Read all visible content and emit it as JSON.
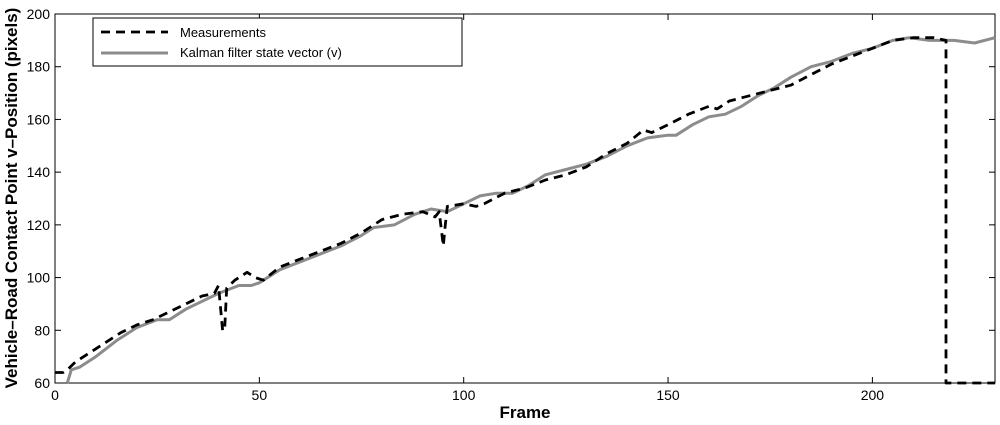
{
  "chart_data": {
    "type": "line",
    "title": "",
    "xlabel": "Frame",
    "ylabel": "Vehicle–Road Contact Point v–Position (pixels)",
    "xlim": [
      0,
      230
    ],
    "ylim": [
      60,
      200
    ],
    "xticks": [
      0,
      50,
      100,
      150,
      200
    ],
    "yticks": [
      60,
      80,
      100,
      120,
      140,
      160,
      180,
      200
    ],
    "grid": false,
    "legend_position": "top-left",
    "series": [
      {
        "name": "Measurements",
        "style": "dashed",
        "color": "#000000",
        "points": [
          [
            0,
            64
          ],
          [
            2,
            64
          ],
          [
            3,
            65
          ],
          [
            5,
            68
          ],
          [
            8,
            71
          ],
          [
            12,
            75
          ],
          [
            16,
            79
          ],
          [
            20,
            82
          ],
          [
            24,
            84
          ],
          [
            28,
            87
          ],
          [
            32,
            90
          ],
          [
            36,
            93
          ],
          [
            39,
            94
          ],
          [
            40,
            97
          ],
          [
            41,
            80
          ],
          [
            41.5,
            80
          ],
          [
            42,
            96
          ],
          [
            44,
            99
          ],
          [
            47,
            102
          ],
          [
            49,
            100
          ],
          [
            51,
            99
          ],
          [
            55,
            104
          ],
          [
            60,
            107
          ],
          [
            65,
            110
          ],
          [
            70,
            113
          ],
          [
            75,
            117
          ],
          [
            80,
            122
          ],
          [
            85,
            124
          ],
          [
            90,
            125
          ],
          [
            93,
            123
          ],
          [
            94,
            125
          ],
          [
            95,
            112
          ],
          [
            95.5,
            120
          ],
          [
            96,
            127
          ],
          [
            100,
            128
          ],
          [
            103,
            127
          ],
          [
            105,
            128
          ],
          [
            110,
            132
          ],
          [
            115,
            134
          ],
          [
            120,
            137
          ],
          [
            125,
            139
          ],
          [
            130,
            142
          ],
          [
            135,
            147
          ],
          [
            140,
            151
          ],
          [
            144,
            156
          ],
          [
            146,
            155
          ],
          [
            150,
            158
          ],
          [
            155,
            162
          ],
          [
            160,
            165
          ],
          [
            162,
            164
          ],
          [
            165,
            167
          ],
          [
            170,
            169
          ],
          [
            175,
            171
          ],
          [
            180,
            173
          ],
          [
            185,
            177
          ],
          [
            190,
            181
          ],
          [
            195,
            184
          ],
          [
            200,
            187
          ],
          [
            205,
            190
          ],
          [
            210,
            191
          ],
          [
            215,
            191
          ],
          [
            218,
            190
          ],
          [
            218,
            60
          ],
          [
            230,
            60
          ]
        ]
      },
      {
        "name": "Kalman filter state vector (v)",
        "style": "solid",
        "color": "#8c8c8c",
        "points": [
          [
            3,
            60
          ],
          [
            4,
            65
          ],
          [
            6,
            66
          ],
          [
            10,
            70
          ],
          [
            15,
            76
          ],
          [
            20,
            81
          ],
          [
            25,
            84
          ],
          [
            28,
            84
          ],
          [
            32,
            88
          ],
          [
            36,
            91
          ],
          [
            40,
            94
          ],
          [
            45,
            97
          ],
          [
            48,
            97
          ],
          [
            50,
            98
          ],
          [
            55,
            103
          ],
          [
            60,
            106
          ],
          [
            65,
            109
          ],
          [
            70,
            112
          ],
          [
            75,
            116
          ],
          [
            78,
            119
          ],
          [
            83,
            120
          ],
          [
            88,
            124
          ],
          [
            92,
            126
          ],
          [
            96,
            125
          ],
          [
            100,
            128
          ],
          [
            104,
            131
          ],
          [
            108,
            132
          ],
          [
            112,
            132
          ],
          [
            116,
            135
          ],
          [
            120,
            139
          ],
          [
            125,
            141
          ],
          [
            130,
            143
          ],
          [
            135,
            146
          ],
          [
            140,
            150
          ],
          [
            145,
            153
          ],
          [
            150,
            154
          ],
          [
            152,
            154
          ],
          [
            156,
            158
          ],
          [
            160,
            161
          ],
          [
            164,
            162
          ],
          [
            168,
            165
          ],
          [
            172,
            169
          ],
          [
            176,
            172
          ],
          [
            180,
            176
          ],
          [
            185,
            180
          ],
          [
            190,
            182
          ],
          [
            195,
            185
          ],
          [
            200,
            187
          ],
          [
            205,
            190
          ],
          [
            209,
            191
          ],
          [
            214,
            190
          ],
          [
            220,
            190
          ],
          [
            225,
            189
          ],
          [
            230,
            191
          ]
        ]
      }
    ]
  }
}
